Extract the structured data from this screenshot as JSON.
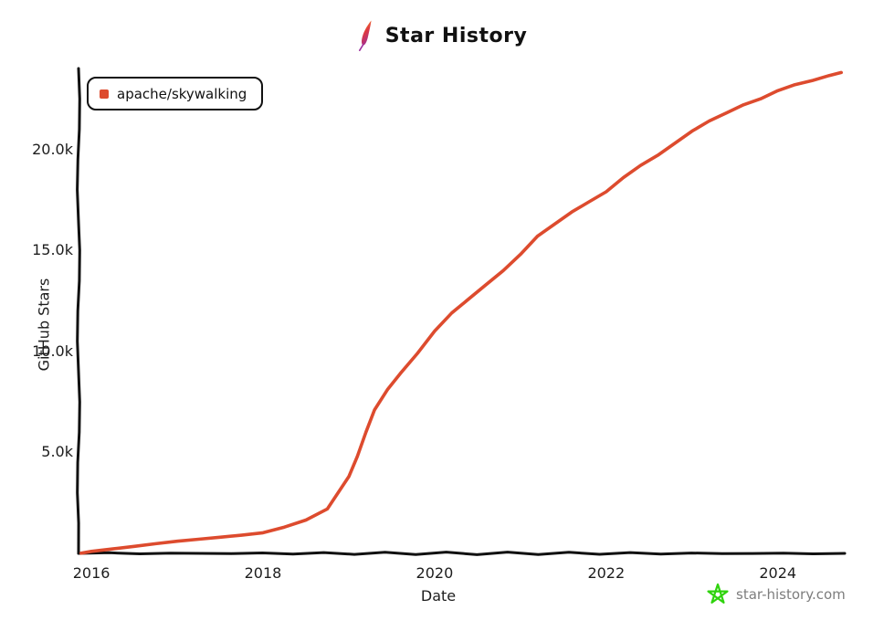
{
  "header": {
    "title": "Star History",
    "icon": "apache-feather-icon"
  },
  "legend": {
    "items": [
      {
        "label": "apache/skywalking",
        "color": "#dd4b2e"
      }
    ]
  },
  "watermark": {
    "label": "star-history.com",
    "icon": "star-doodle-icon",
    "icon_color": "#2fd30d",
    "text_color": "#7d7d7d"
  },
  "colors": {
    "axis": "#111111",
    "text": "#1d1d1d",
    "background": "#ffffff",
    "series_1": "#dd4b2e"
  },
  "chart_data": {
    "type": "line",
    "title": "Star History",
    "xlabel": "Date",
    "ylabel": "GitHub Stars",
    "grid": false,
    "legend_position": "top-left",
    "xlim": [
      2015.85,
      2024.78
    ],
    "ylim": [
      0,
      24000
    ],
    "x_ticks": [
      {
        "label": "2016",
        "value": 2016
      },
      {
        "label": "2018",
        "value": 2018
      },
      {
        "label": "2020",
        "value": 2020
      },
      {
        "label": "2022",
        "value": 2022
      },
      {
        "label": "2024",
        "value": 2024
      }
    ],
    "y_ticks": [
      {
        "label": "5.0k",
        "value": 5000
      },
      {
        "label": "10.0k",
        "value": 10000
      },
      {
        "label": "15.0k",
        "value": 15000
      },
      {
        "label": "20.0k",
        "value": 20000
      }
    ],
    "series": [
      {
        "name": "apache/skywalking",
        "color": "#dd4b2e",
        "x": [
          2015.88,
          2016.0,
          2016.25,
          2016.5,
          2016.75,
          2017.0,
          2017.25,
          2017.5,
          2017.75,
          2018.0,
          2018.25,
          2018.5,
          2018.75,
          2019.0,
          2019.1,
          2019.2,
          2019.3,
          2019.45,
          2019.6,
          2019.8,
          2020.0,
          2020.2,
          2020.4,
          2020.6,
          2020.8,
          2021.0,
          2021.2,
          2021.4,
          2021.6,
          2021.8,
          2022.0,
          2022.2,
          2022.4,
          2022.6,
          2022.8,
          2023.0,
          2023.2,
          2023.4,
          2023.6,
          2023.8,
          2024.0,
          2024.2,
          2024.4,
          2024.6,
          2024.74
        ],
        "y": [
          10,
          100,
          220,
          350,
          480,
          600,
          700,
          800,
          900,
          1020,
          1300,
          1650,
          2200,
          3800,
          4800,
          6000,
          7100,
          8100,
          8900,
          9900,
          11000,
          11900,
          12600,
          13300,
          14000,
          14800,
          15700,
          16300,
          16900,
          17400,
          17900,
          18600,
          19200,
          19700,
          20300,
          20900,
          21400,
          21800,
          22200,
          22500,
          22900,
          23200,
          23400,
          23650,
          23800
        ]
      }
    ]
  }
}
